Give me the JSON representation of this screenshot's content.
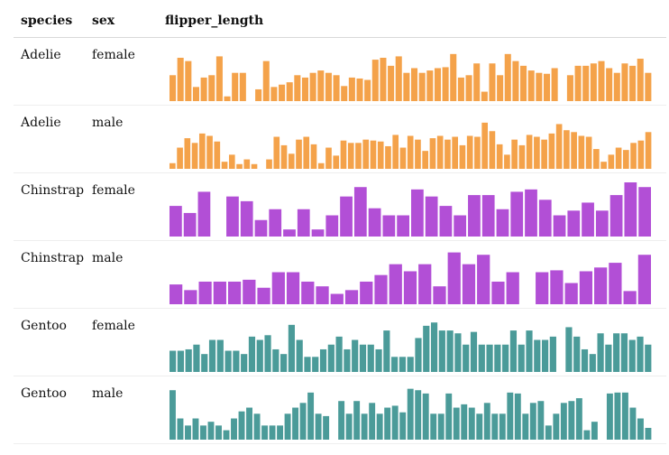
{
  "headers": [
    "species",
    "sex",
    "flipper_length"
  ],
  "colors": {
    "Adelie": "#f4a24a",
    "Chinstrap": "#b24fd6",
    "Gentoo": "#4b9b99"
  },
  "rows": [
    {
      "species": "Adelie",
      "sex": "female",
      "color_key": "Adelie",
      "values": [
        0.55,
        0.92,
        0.85,
        0.3,
        0.5,
        0.55,
        0.95,
        0.1,
        0.6,
        0.6,
        0,
        0.25,
        0.85,
        0.3,
        0.35,
        0.4,
        0.55,
        0.5,
        0.6,
        0.65,
        0.6,
        0.55,
        0.32,
        0.5,
        0.48,
        0.45,
        0.88,
        0.92,
        0.75,
        0.95,
        0.6,
        0.7,
        0.6,
        0.65,
        0.7,
        0.72,
        1.0,
        0.5,
        0.55,
        0.8,
        0.2,
        0.8,
        0.55,
        1.0,
        0.85,
        0.75,
        0.65,
        0.6,
        0.58,
        0.7,
        0.0,
        0.55,
        0.75,
        0.75,
        0.8,
        0.85,
        0.7,
        0.6,
        0.8,
        0.75,
        0.9,
        0.6
      ]
    },
    {
      "species": "Adelie",
      "sex": "male",
      "color_key": "Adelie",
      "values": [
        0.12,
        0.45,
        0.65,
        0.55,
        0.75,
        0.7,
        0.58,
        0.15,
        0.3,
        0.1,
        0.2,
        0.1,
        0.0,
        0.2,
        0.68,
        0.5,
        0.32,
        0.62,
        0.68,
        0.52,
        0.12,
        0.45,
        0.28,
        0.6,
        0.55,
        0.55,
        0.62,
        0.6,
        0.58,
        0.48,
        0.72,
        0.45,
        0.7,
        0.62,
        0.38,
        0.65,
        0.7,
        0.62,
        0.68,
        0.5,
        0.7,
        0.68,
        0.98,
        0.8,
        0.52,
        0.3,
        0.62,
        0.5,
        0.72,
        0.68,
        0.62,
        0.75,
        0.95,
        0.82,
        0.78,
        0.7,
        0.68,
        0.42,
        0.15,
        0.3,
        0.45,
        0.4,
        0.55,
        0.6,
        0.78
      ]
    },
    {
      "species": "Chinstrap",
      "sex": "female",
      "color_key": "Chinstrap",
      "values": [
        0.65,
        0.5,
        0.95,
        0.0,
        0.85,
        0.75,
        0.35,
        0.58,
        0.15,
        0.58,
        0.15,
        0.45,
        0.85,
        1.05,
        0.6,
        0.45,
        0.45,
        1.0,
        0.85,
        0.65,
        0.45,
        0.88,
        0.88,
        0.58,
        0.95,
        1.0,
        0.78,
        0.45,
        0.55,
        0.72,
        0.55,
        0.88,
        1.15,
        1.05
      ]
    },
    {
      "species": "Chinstrap",
      "sex": "male",
      "color_key": "Chinstrap",
      "values": [
        0.42,
        0.3,
        0.48,
        0.48,
        0.48,
        0.52,
        0.35,
        0.68,
        0.68,
        0.48,
        0.38,
        0.22,
        0.3,
        0.48,
        0.62,
        0.85,
        0.7,
        0.85,
        0.38,
        1.1,
        0.85,
        1.05,
        0.48,
        0.68,
        0.0,
        0.68,
        0.72,
        0.45,
        0.7,
        0.78,
        0.88,
        0.28,
        1.05
      ]
    },
    {
      "species": "Gentoo",
      "sex": "female",
      "color_key": "Gentoo",
      "values": [
        0.45,
        0.45,
        0.48,
        0.58,
        0.38,
        0.68,
        0.68,
        0.45,
        0.45,
        0.38,
        0.75,
        0.68,
        0.78,
        0.48,
        0.38,
        1.0,
        0.68,
        0.32,
        0.32,
        0.48,
        0.58,
        0.75,
        0.48,
        0.68,
        0.58,
        0.58,
        0.48,
        0.88,
        0.32,
        0.32,
        0.32,
        0.72,
        0.98,
        1.05,
        0.88,
        0.88,
        0.82,
        0.58,
        0.85,
        0.58,
        0.58,
        0.58,
        0.58,
        0.88,
        0.58,
        0.88,
        0.68,
        0.68,
        0.75,
        0.0,
        0.95,
        0.75,
        0.48,
        0.38,
        0.82,
        0.58,
        0.82,
        0.82,
        0.68,
        0.75,
        0.58
      ]
    },
    {
      "species": "Gentoo",
      "sex": "male",
      "color_key": "Gentoo",
      "values": [
        1.05,
        0.45,
        0.3,
        0.45,
        0.3,
        0.38,
        0.3,
        0.2,
        0.45,
        0.6,
        0.68,
        0.55,
        0.3,
        0.3,
        0.3,
        0.55,
        0.68,
        0.78,
        1.0,
        0.55,
        0.5,
        0.0,
        0.82,
        0.55,
        0.82,
        0.55,
        0.78,
        0.55,
        0.68,
        0.72,
        0.58,
        1.08,
        1.05,
        0.98,
        0.55,
        0.55,
        0.98,
        0.68,
        0.75,
        0.68,
        0.55,
        0.78,
        0.55,
        0.55,
        1.0,
        0.98,
        0.55,
        0.78,
        0.82,
        0.3,
        0.55,
        0.78,
        0.82,
        0.88,
        0.2,
        0.38,
        0.0,
        0.98,
        1.0,
        1.0,
        0.68,
        0.45,
        0.25
      ]
    }
  ],
  "chart_data": {
    "type": "bar",
    "title": "",
    "xlabel": "",
    "ylabel": "",
    "note": "sparkline histograms of flipper_length per species/sex group; bar heights are relative counts (estimated)"
  }
}
